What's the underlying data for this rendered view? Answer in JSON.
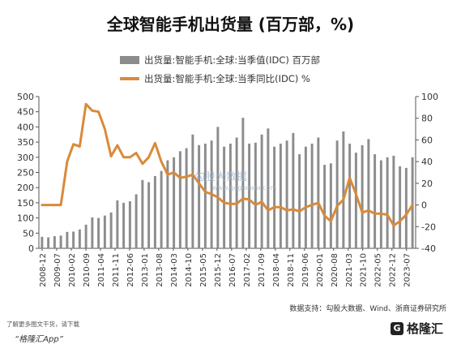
{
  "title": "全球智能手机出货量 (百万部，%)",
  "source": "数据支持：勾股大数据、Wind、浙商证券研究所",
  "footer": {
    "note": "了解更多图文干货，请下载",
    "app": "“格隆汇App”"
  },
  "watermark": {
    "text": "勾股大数据",
    "url": "www.gogudata.com"
  },
  "brand": {
    "mark": "G",
    "name": "格隆汇"
  },
  "colors": {
    "bars": "#8c8c8c",
    "line": "#d98a3a",
    "axis": "#555555"
  },
  "chart_data": {
    "type": "bar",
    "left_axis": {
      "ylim": [
        0,
        500
      ],
      "ticks": [
        0,
        50,
        100,
        150,
        200,
        250,
        300,
        350,
        400,
        450,
        500
      ]
    },
    "right_axis": {
      "ylim": [
        -40,
        100
      ],
      "ticks": [
        -40,
        -20,
        0,
        20,
        40,
        60,
        80,
        100
      ]
    },
    "x_tick_labels": [
      "2008-12",
      "2009-07",
      "2010-02",
      "2010-09",
      "2011-04",
      "2011-11",
      "2012-06",
      "2013-01",
      "2013-08",
      "2014-03",
      "2014-10",
      "2015-05",
      "2015-12",
      "2016-07",
      "2017-02",
      "2017-09",
      "2018-04",
      "2018-11",
      "2019-06",
      "2020-01",
      "2020-08",
      "2021-03",
      "2021-10",
      "2022-05",
      "2022-12",
      "2023-07"
    ],
    "categories": [
      "2008Q4",
      "2009Q1",
      "2009Q2",
      "2009Q3",
      "2009Q4",
      "2010Q1",
      "2010Q2",
      "2010Q3",
      "2010Q4",
      "2011Q1",
      "2011Q2",
      "2011Q3",
      "2011Q4",
      "2012Q1",
      "2012Q2",
      "2012Q3",
      "2012Q4",
      "2013Q1",
      "2013Q2",
      "2013Q3",
      "2013Q4",
      "2014Q1",
      "2014Q2",
      "2014Q3",
      "2014Q4",
      "2015Q1",
      "2015Q2",
      "2015Q3",
      "2015Q4",
      "2016Q1",
      "2016Q2",
      "2016Q3",
      "2016Q4",
      "2017Q1",
      "2017Q2",
      "2017Q3",
      "2017Q4",
      "2018Q1",
      "2018Q2",
      "2018Q3",
      "2018Q4",
      "2019Q1",
      "2019Q2",
      "2019Q3",
      "2019Q4",
      "2020Q1",
      "2020Q2",
      "2020Q3",
      "2020Q4",
      "2021Q1",
      "2021Q2",
      "2021Q3",
      "2021Q4",
      "2022Q1",
      "2022Q2",
      "2022Q3",
      "2022Q4",
      "2023Q1",
      "2023Q2",
      "2023Q3"
    ],
    "series": [
      {
        "name": "出货量:智能手机:全球:当季值(IDC)  百万部",
        "axis": "left",
        "kind": "bar",
        "values": [
          38,
          36,
          40,
          42,
          54,
          55,
          62,
          78,
          102,
          100,
          108,
          118,
          158,
          150,
          155,
          178,
          225,
          218,
          238,
          255,
          290,
          300,
          320,
          330,
          375,
          340,
          345,
          355,
          400,
          335,
          345,
          365,
          430,
          345,
          348,
          375,
          395,
          335,
          345,
          355,
          380,
          310,
          335,
          345,
          365,
          275,
          280,
          355,
          385,
          345,
          315,
          340,
          360,
          310,
          290,
          300,
          305,
          270,
          265,
          300
        ]
      },
      {
        "name": "出货量:智能手机:全球:当季同比(IDC)  %",
        "axis": "right",
        "kind": "line",
        "values": [
          0,
          0,
          0,
          0,
          40,
          56,
          54,
          93,
          87,
          86,
          70,
          45,
          55,
          44,
          44,
          48,
          38,
          44,
          57,
          40,
          28,
          30,
          25,
          26,
          28,
          20,
          12,
          10,
          7,
          2,
          1,
          1,
          6,
          5,
          0,
          3,
          -5,
          -2,
          -2,
          -5,
          -4,
          -6,
          -2,
          0,
          2,
          -10,
          -15,
          -1,
          5,
          25,
          10,
          -7,
          -5,
          -8,
          -8,
          -9,
          -19,
          -15,
          -9,
          0
        ]
      }
    ],
    "legend_position": "top-left",
    "grid": false
  }
}
